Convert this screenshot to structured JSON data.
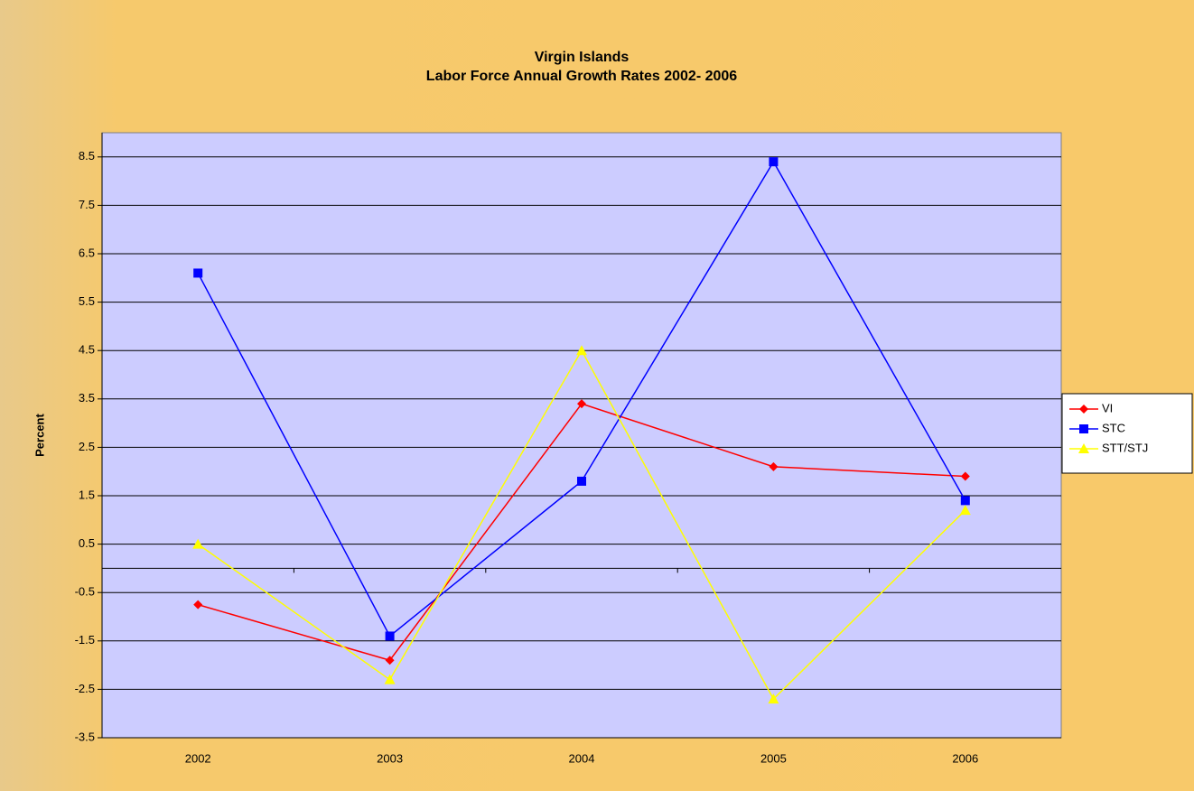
{
  "chart_data": {
    "type": "line",
    "title": "Virgin Islands",
    "subtitle": "Labor Force Annual Growth Rates 2002- 2006",
    "y_label": "Percent",
    "categories": [
      "2002",
      "2003",
      "2004",
      "2005",
      "2006"
    ],
    "series": [
      {
        "name": "VI",
        "color": "#ff0000",
        "marker": "diamond",
        "values": [
          -0.75,
          -1.9,
          3.4,
          2.1,
          1.9
        ]
      },
      {
        "name": "STC",
        "color": "#0000ff",
        "marker": "square",
        "values": [
          6.1,
          -1.4,
          1.8,
          8.4,
          1.4
        ]
      },
      {
        "name": "STT/STJ",
        "color": "#ffff00",
        "marker": "triangle",
        "values": [
          0.5,
          -2.3,
          4.5,
          -2.7,
          1.2
        ]
      }
    ],
    "ylim": [
      -3.5,
      9
    ],
    "yticks": [
      -3.5,
      -2.5,
      -1.5,
      -0.5,
      0.5,
      1.5,
      2.5,
      3.5,
      4.5,
      5.5,
      6.5,
      7.5,
      8.5
    ],
    "grid": true,
    "legend": "right",
    "plot_color": "#ccccff"
  }
}
